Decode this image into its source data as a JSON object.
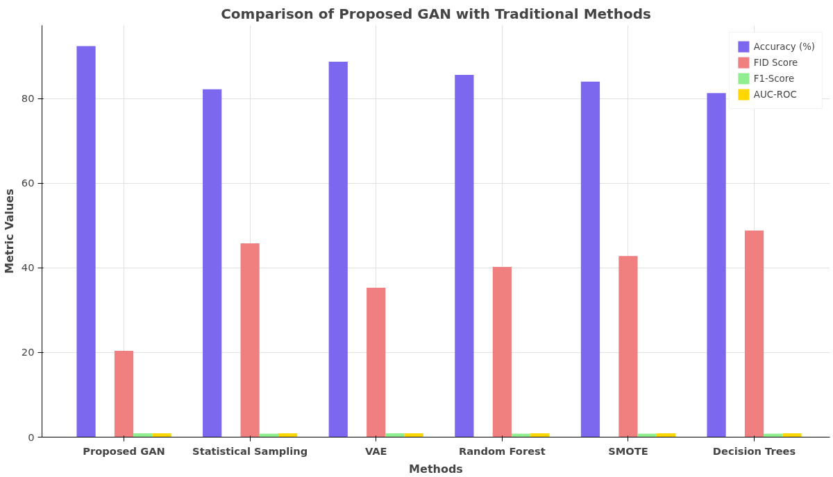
{
  "chart_data": {
    "type": "bar",
    "title": "Comparison of Proposed GAN with Traditional Methods",
    "xlabel": "Methods",
    "ylabel": "Metric Values",
    "categories": [
      "Proposed GAN",
      "Statistical Sampling",
      "VAE",
      "Random Forest",
      "SMOTE",
      "Decision Trees"
    ],
    "series": [
      {
        "name": "Accuracy (%)",
        "color": "#7b68ee",
        "values": [
          92.4,
          82.2,
          88.7,
          85.6,
          84.0,
          81.3
        ]
      },
      {
        "name": "FID Score",
        "color": "#f08080",
        "values": [
          20.4,
          45.8,
          35.3,
          40.2,
          42.8,
          48.8
        ]
      },
      {
        "name": "F1-Score",
        "color": "#90ee90",
        "values": [
          0.9,
          0.8,
          0.9,
          0.8,
          0.8,
          0.8
        ]
      },
      {
        "name": "AUC-ROC",
        "color": "#ffd700",
        "values": [
          0.9,
          0.9,
          0.9,
          0.9,
          0.9,
          0.9
        ]
      }
    ],
    "ylim": [
      0,
      97.3
    ],
    "yticks": [
      0,
      20,
      40,
      60,
      80
    ],
    "grid": true,
    "legend": "top right"
  }
}
